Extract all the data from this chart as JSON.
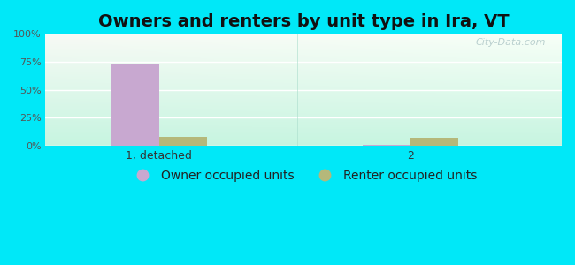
{
  "title": "Owners and renters by unit type in Ira, VT",
  "categories": [
    "1, detached",
    "2"
  ],
  "owner_values": [
    73,
    1
  ],
  "renter_values": [
    8,
    7
  ],
  "owner_color": "#c8a8d0",
  "renter_color": "#b5b87a",
  "bg_color_top": "#f0faf0",
  "bg_color_bottom": "#c8f0e0",
  "outer_bg": "#00e8f8",
  "ylim": [
    0,
    100
  ],
  "yticks": [
    0,
    25,
    50,
    75,
    100
  ],
  "ytick_labels": [
    "0%",
    "25%",
    "50%",
    "75%",
    "100%"
  ],
  "title_fontsize": 14,
  "legend_fontsize": 10,
  "watermark": "City-Data.com",
  "x_positions": [
    1.0,
    3.0
  ],
  "bar_width": 0.38,
  "xlim": [
    0.1,
    4.2
  ]
}
